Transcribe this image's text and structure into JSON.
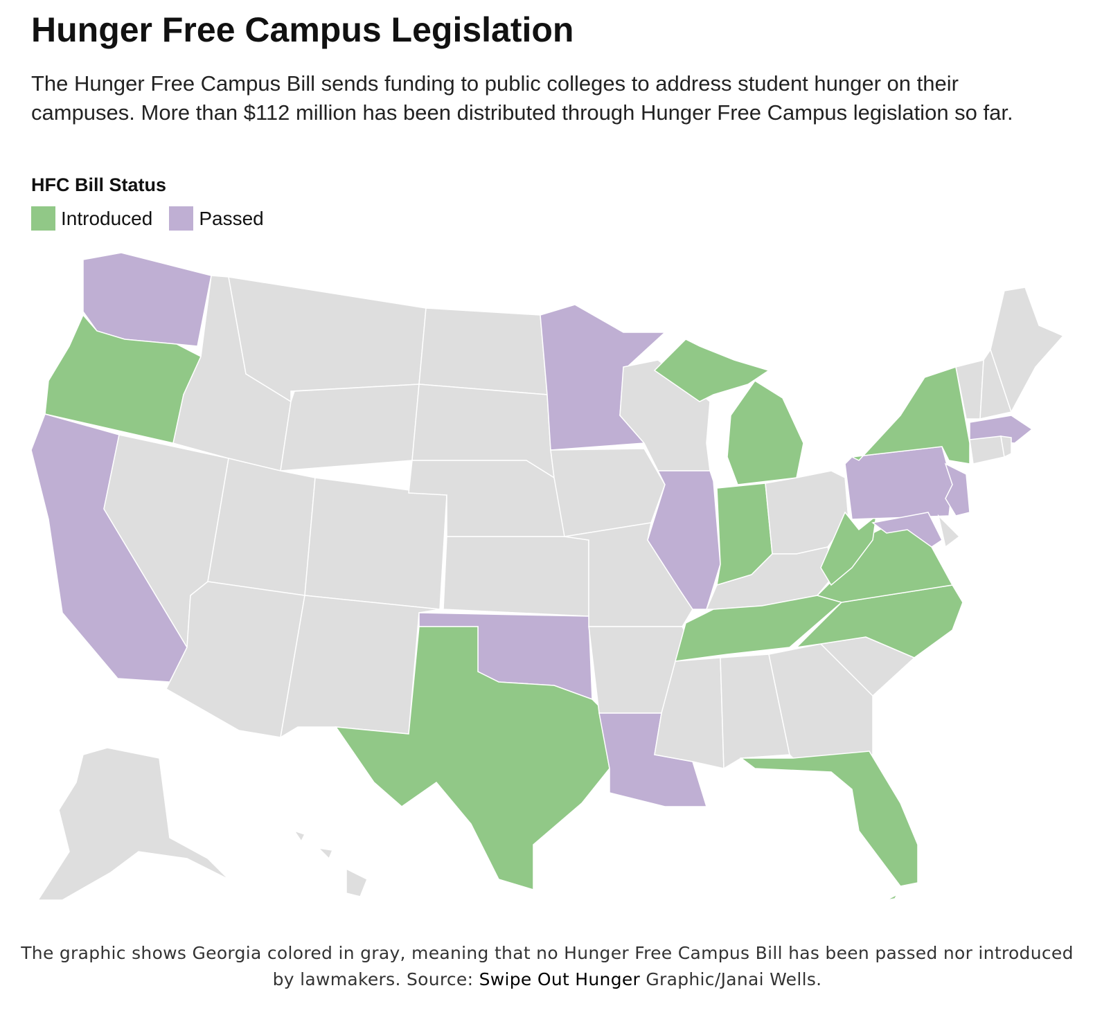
{
  "header": {
    "title": "Hunger Free Campus Legislation",
    "subtitle": "The Hunger Free Campus Bill sends funding to public colleges to address student hunger on their campuses. More than $112 million has been distributed through Hunger Free Campus legislation so far."
  },
  "legend": {
    "title": "HFC Bill Status",
    "items": [
      {
        "label": "Introduced",
        "color": "#91c887"
      },
      {
        "label": "Passed",
        "color": "#bfafd3"
      }
    ],
    "default_color": "#dedede"
  },
  "caption": {
    "text": "The graphic shows Georgia colored in gray, meaning that no Hunger Free Campus Bill has been passed nor introduced by lawmakers. Source: ",
    "link": "Swipe Out Hunger",
    "after": " Graphic/Janai Wells."
  }
}
